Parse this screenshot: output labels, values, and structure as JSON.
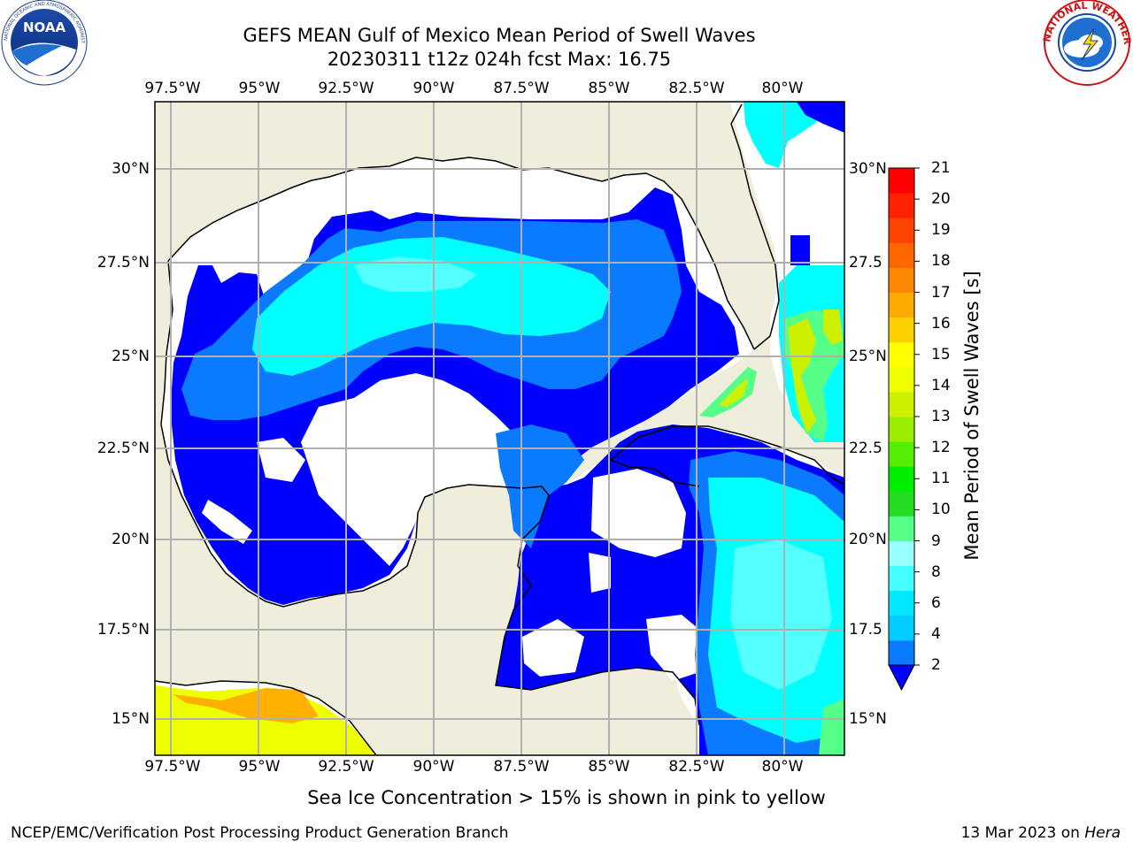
{
  "title_line1": "GEFS MEAN Gulf of Mexico Mean Period of Swell Waves",
  "title_line2": "20230311 t12z 024h fcst   Max: 16.75",
  "lon_labels": [
    "97.5°W",
    "95°W",
    "92.5°W",
    "90°W",
    "87.5°W",
    "85°W",
    "82.5°W",
    "80°W"
  ],
  "lat_labels_left": [
    "30°N",
    "27.5°N",
    "25°N",
    "22.5°N",
    "20°N",
    "17.5°N",
    "15°N"
  ],
  "lat_labels_right": [
    "30°N",
    "27.5",
    "25°N",
    "22.5",
    "20°N",
    "17.5",
    "15°N"
  ],
  "colorbar": {
    "label": "Mean Period of Swell Waves [s]",
    "ticks": [
      "21",
      "20",
      "19",
      "18",
      "17",
      "16",
      "15",
      "14",
      "13",
      "12",
      "11",
      "10",
      "9",
      "8",
      "6",
      "4",
      "2"
    ],
    "colors_low_to_high": [
      "#0a7aff",
      "#00ccff",
      "#00e8ff",
      "#44ffff",
      "#99ffff",
      "#55ff88",
      "#22dd22",
      "#00ee00",
      "#55ee00",
      "#99ee00",
      "#ccf000",
      "#eeff00",
      "#ffff00",
      "#ffd000",
      "#ffaa00",
      "#ff8800",
      "#ff6600",
      "#ff4400",
      "#ff2200",
      "#ff0000"
    ],
    "extend_color": "#0000ff"
  },
  "colors": {
    "land": "#efeedc",
    "low_period": "#0000ff",
    "mid_period": "#0a7aff",
    "cyan": "#00ffff",
    "light_cyan": "#55ffff",
    "yellow": "#ffff00",
    "orange": "#ffb000"
  },
  "caption": "Sea Ice Concentration > 15% is shown in pink to yellow",
  "footer_left": "NCEP/EMC/Verification Post Processing Product Generation Branch",
  "footer_right_prefix": "13 Mar 2023 on",
  "footer_right_host": "Hera",
  "logos": {
    "noaa": {
      "name": "NOAA",
      "ring_text": "NATIONAL OCEANIC AND ATMOSPHERIC ADMINISTRATION · U.S. DEPARTMENT OF COMMERCE"
    },
    "nws": {
      "ring_text": "NATIONAL WEATHER SERVICE"
    }
  }
}
